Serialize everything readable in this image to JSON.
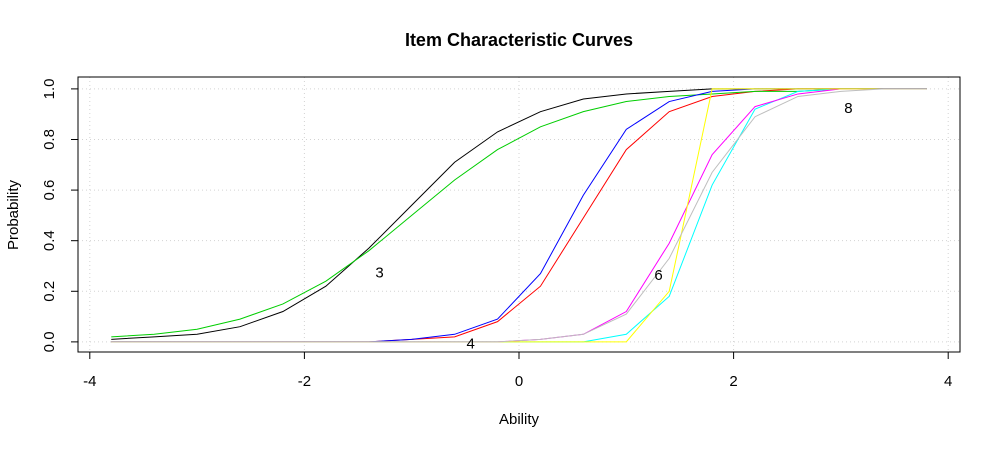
{
  "chart_data": {
    "type": "line",
    "title": "Item Characteristic Curves",
    "x_label": "Ability",
    "y_label": "Probability",
    "x": [
      -3.8,
      -3.4,
      -3.0,
      -2.6,
      -2.2,
      -1.8,
      -1.4,
      -1.0,
      -0.6,
      -0.2,
      0.2,
      0.6,
      1.0,
      1.4,
      1.8,
      2.2,
      2.6,
      3.0,
      3.4,
      3.8
    ],
    "series": [
      {
        "color": "#000000",
        "values": [
          0.01,
          0.02,
          0.03,
          0.06,
          0.12,
          0.22,
          0.37,
          0.54,
          0.71,
          0.83,
          0.91,
          0.96,
          0.98,
          0.99,
          1.0,
          1.0,
          1.0,
          1.0,
          1.0,
          1.0
        ]
      },
      {
        "color": "#ff0000",
        "values": [
          0,
          0,
          0,
          0,
          0,
          0,
          0,
          0.01,
          0.02,
          0.08,
          0.22,
          0.49,
          0.76,
          0.91,
          0.97,
          0.99,
          1.0,
          1.0,
          1.0,
          1.0
        ]
      },
      {
        "color": "#00cd00",
        "values": [
          0.02,
          0.03,
          0.05,
          0.09,
          0.15,
          0.24,
          0.36,
          0.5,
          0.64,
          0.76,
          0.85,
          0.91,
          0.95,
          0.97,
          0.98,
          0.99,
          0.99,
          1.0,
          1.0,
          1.0
        ]
      },
      {
        "color": "#0000ff",
        "values": [
          0,
          0,
          0,
          0,
          0,
          0,
          0,
          0.01,
          0.03,
          0.09,
          0.27,
          0.58,
          0.84,
          0.95,
          0.99,
          1.0,
          1.0,
          1.0,
          1.0,
          1.0
        ]
      },
      {
        "color": "#00ffff",
        "values": [
          0,
          0,
          0,
          0,
          0,
          0,
          0,
          0,
          0,
          0,
          0,
          0,
          0.03,
          0.18,
          0.62,
          0.92,
          0.99,
          1.0,
          1.0,
          1.0
        ]
      },
      {
        "color": "#ff00ff",
        "values": [
          0,
          0,
          0,
          0,
          0,
          0,
          0,
          0,
          0,
          0,
          0.01,
          0.03,
          0.12,
          0.39,
          0.74,
          0.93,
          0.98,
          1.0,
          1.0,
          1.0
        ]
      },
      {
        "color": "#ffff00",
        "values": [
          0,
          0,
          0,
          0,
          0,
          0,
          0,
          0,
          0,
          0,
          0,
          0,
          0,
          0.2,
          1.0,
          1.0,
          1.0,
          1.0,
          1.0,
          1.0
        ]
      },
      {
        "color": "#bebebe",
        "values": [
          0,
          0,
          0,
          0,
          0,
          0,
          0,
          0,
          0,
          0,
          0.01,
          0.03,
          0.11,
          0.33,
          0.67,
          0.89,
          0.97,
          0.99,
          1.0,
          1.0
        ]
      }
    ],
    "annotations": [
      {
        "text": "3",
        "x": -1.3,
        "y": 0.27,
        "color": "#00cd00"
      },
      {
        "text": "4",
        "x": -0.45,
        "y": -0.01,
        "color": "#0000ff"
      },
      {
        "text": "6",
        "x": 1.3,
        "y": 0.26,
        "color": "#ff00ff"
      },
      {
        "text": "8",
        "x": 3.07,
        "y": 0.92,
        "color": "#bebebe"
      }
    ],
    "xlim": [
      -4.11,
      4.11
    ],
    "ylim": [
      -0.04,
      1.047
    ],
    "xticks": [
      -4,
      -2,
      0,
      2,
      4
    ],
    "yticks": [
      {
        "value": 0,
        "label": "0.0"
      },
      0.2,
      0.4,
      0.6,
      0.8,
      {
        "value": 1,
        "label": "1.0"
      }
    ],
    "grid": true
  }
}
